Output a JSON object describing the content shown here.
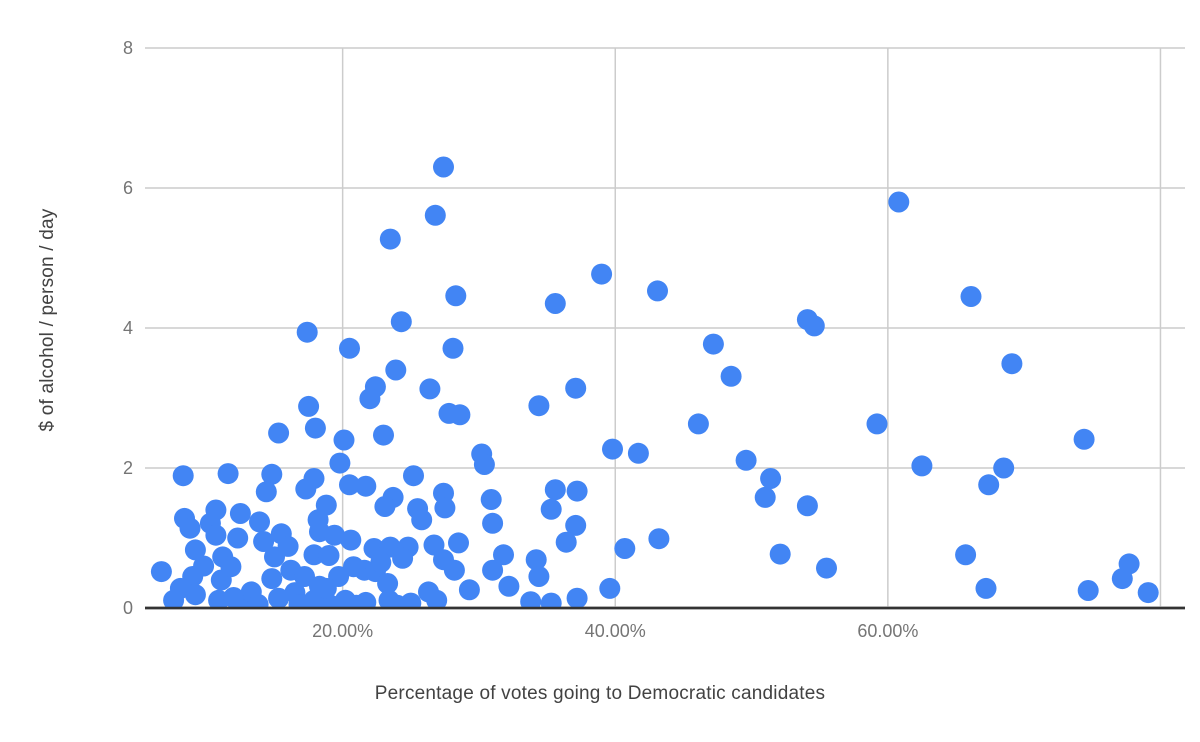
{
  "chart_data": {
    "type": "scatter",
    "title": "",
    "xlabel": "Percentage of votes going to Democratic candidates",
    "ylabel": "$ of alcohol / person / day",
    "xlim": [
      5.5,
      81.8
    ],
    "ylim": [
      0,
      8
    ],
    "grid": true,
    "legend_position": "none",
    "point_color": "#4285f4",
    "gridline_color": "#cccccc",
    "axis_line_color": "#333333",
    "tick_label_color": "#757575",
    "axis_title_color": "#424242",
    "x_ticks": [
      {
        "value": 20,
        "label": "20.00%"
      },
      {
        "value": 40,
        "label": "40.00%"
      },
      {
        "value": 60,
        "label": "60.00%"
      },
      {
        "value": 80,
        "label": ""
      }
    ],
    "y_ticks": [
      {
        "value": 0,
        "label": "0"
      },
      {
        "value": 2,
        "label": "2"
      },
      {
        "value": 4,
        "label": "4"
      },
      {
        "value": 6,
        "label": "6"
      },
      {
        "value": 8,
        "label": "8"
      }
    ],
    "points": [
      [
        27.4,
        6.3
      ],
      [
        26.8,
        5.61
      ],
      [
        23.5,
        5.27
      ],
      [
        28.3,
        4.46
      ],
      [
        24.3,
        4.09
      ],
      [
        17.4,
        3.94
      ],
      [
        39.0,
        4.77
      ],
      [
        35.6,
        4.35
      ],
      [
        43.1,
        4.53
      ],
      [
        54.1,
        4.12
      ],
      [
        54.6,
        4.03
      ],
      [
        60.8,
        5.8
      ],
      [
        66.1,
        4.45
      ],
      [
        20.5,
        3.71
      ],
      [
        28.1,
        3.71
      ],
      [
        23.9,
        3.4
      ],
      [
        22.4,
        3.16
      ],
      [
        22.0,
        2.99
      ],
      [
        26.4,
        3.13
      ],
      [
        27.8,
        2.78
      ],
      [
        28.6,
        2.76
      ],
      [
        17.5,
        2.88
      ],
      [
        18.0,
        2.57
      ],
      [
        15.3,
        2.5
      ],
      [
        20.1,
        2.4
      ],
      [
        23.0,
        2.47
      ],
      [
        19.8,
        2.07
      ],
      [
        30.2,
        2.2
      ],
      [
        30.4,
        2.05
      ],
      [
        47.2,
        3.77
      ],
      [
        48.5,
        3.31
      ],
      [
        37.1,
        3.14
      ],
      [
        34.4,
        2.89
      ],
      [
        46.1,
        2.63
      ],
      [
        39.8,
        2.27
      ],
      [
        41.7,
        2.21
      ],
      [
        49.6,
        2.11
      ],
      [
        69.1,
        3.49
      ],
      [
        59.2,
        2.63
      ],
      [
        74.4,
        2.41
      ],
      [
        62.5,
        2.03
      ],
      [
        68.5,
        2.0
      ],
      [
        8.3,
        1.89
      ],
      [
        11.6,
        1.92
      ],
      [
        14.8,
        1.91
      ],
      [
        14.4,
        1.66
      ],
      [
        17.3,
        1.7
      ],
      [
        17.9,
        1.85
      ],
      [
        8.4,
        1.28
      ],
      [
        8.8,
        1.14
      ],
      [
        10.7,
        1.4
      ],
      [
        10.3,
        1.21
      ],
      [
        10.7,
        1.04
      ],
      [
        12.3,
        1.0
      ],
      [
        13.9,
        1.23
      ],
      [
        15.5,
        1.06
      ],
      [
        12.5,
        1.35
      ],
      [
        9.2,
        0.83
      ],
      [
        11.2,
        0.73
      ],
      [
        6.7,
        0.52
      ],
      [
        9.0,
        0.45
      ],
      [
        8.1,
        0.28
      ],
      [
        9.2,
        0.19
      ],
      [
        11.1,
        0.4
      ],
      [
        10.9,
        0.11
      ],
      [
        12.8,
        0.07
      ],
      [
        13.3,
        0.23
      ],
      [
        11.8,
        0.59
      ],
      [
        9.8,
        0.6
      ],
      [
        15.0,
        0.73
      ],
      [
        16.0,
        0.88
      ],
      [
        17.9,
        0.76
      ],
      [
        16.2,
        0.54
      ],
      [
        17.2,
        0.45
      ],
      [
        14.8,
        0.42
      ],
      [
        15.3,
        0.14
      ],
      [
        16.5,
        0.22
      ],
      [
        17.9,
        0.11
      ],
      [
        18.3,
        0.31
      ],
      [
        18.3,
        1.09
      ],
      [
        7.6,
        0.11
      ],
      [
        19.1,
        0.04
      ],
      [
        12.0,
        0.15
      ],
      [
        13.8,
        0.05
      ],
      [
        16.8,
        0.05
      ],
      [
        14.2,
        0.95
      ],
      [
        19.0,
        0.75
      ],
      [
        25.2,
        1.89
      ],
      [
        20.5,
        1.76
      ],
      [
        21.7,
        1.74
      ],
      [
        23.7,
        1.58
      ],
      [
        23.1,
        1.45
      ],
      [
        27.4,
        1.64
      ],
      [
        27.5,
        1.43
      ],
      [
        25.5,
        1.42
      ],
      [
        25.8,
        1.26
      ],
      [
        18.8,
        1.47
      ],
      [
        18.2,
        1.26
      ],
      [
        30.9,
        1.55
      ],
      [
        19.4,
        1.04
      ],
      [
        20.6,
        0.97
      ],
      [
        22.3,
        0.85
      ],
      [
        23.5,
        0.87
      ],
      [
        24.8,
        0.87
      ],
      [
        24.4,
        0.71
      ],
      [
        26.7,
        0.9
      ],
      [
        28.5,
        0.93
      ],
      [
        27.4,
        0.69
      ],
      [
        28.2,
        0.54
      ],
      [
        20.8,
        0.59
      ],
      [
        21.6,
        0.54
      ],
      [
        22.4,
        0.52
      ],
      [
        19.7,
        0.45
      ],
      [
        18.8,
        0.28
      ],
      [
        20.2,
        0.11
      ],
      [
        21.7,
        0.08
      ],
      [
        23.3,
        0.35
      ],
      [
        23.4,
        0.11
      ],
      [
        25.0,
        0.07
      ],
      [
        26.3,
        0.23
      ],
      [
        26.9,
        0.11
      ],
      [
        29.3,
        0.26
      ],
      [
        31.0,
        0.54
      ],
      [
        31.0,
        1.21
      ],
      [
        21.0,
        0.04
      ],
      [
        24.0,
        0.04
      ],
      [
        22.8,
        0.65
      ],
      [
        51.4,
        1.85
      ],
      [
        51.0,
        1.58
      ],
      [
        54.1,
        1.46
      ],
      [
        35.6,
        1.69
      ],
      [
        37.2,
        1.67
      ],
      [
        35.3,
        1.41
      ],
      [
        37.1,
        1.18
      ],
      [
        36.4,
        0.94
      ],
      [
        31.8,
        0.76
      ],
      [
        32.2,
        0.31
      ],
      [
        34.2,
        0.69
      ],
      [
        34.4,
        0.45
      ],
      [
        33.8,
        0.09
      ],
      [
        35.3,
        0.07
      ],
      [
        37.2,
        0.14
      ],
      [
        39.6,
        0.28
      ],
      [
        40.7,
        0.85
      ],
      [
        43.2,
        0.99
      ],
      [
        52.1,
        0.77
      ],
      [
        55.5,
        0.57
      ],
      [
        67.4,
        1.76
      ],
      [
        65.7,
        0.76
      ],
      [
        67.2,
        0.28
      ],
      [
        74.7,
        0.25
      ],
      [
        77.7,
        0.63
      ],
      [
        77.2,
        0.42
      ],
      [
        79.1,
        0.22
      ]
    ]
  }
}
